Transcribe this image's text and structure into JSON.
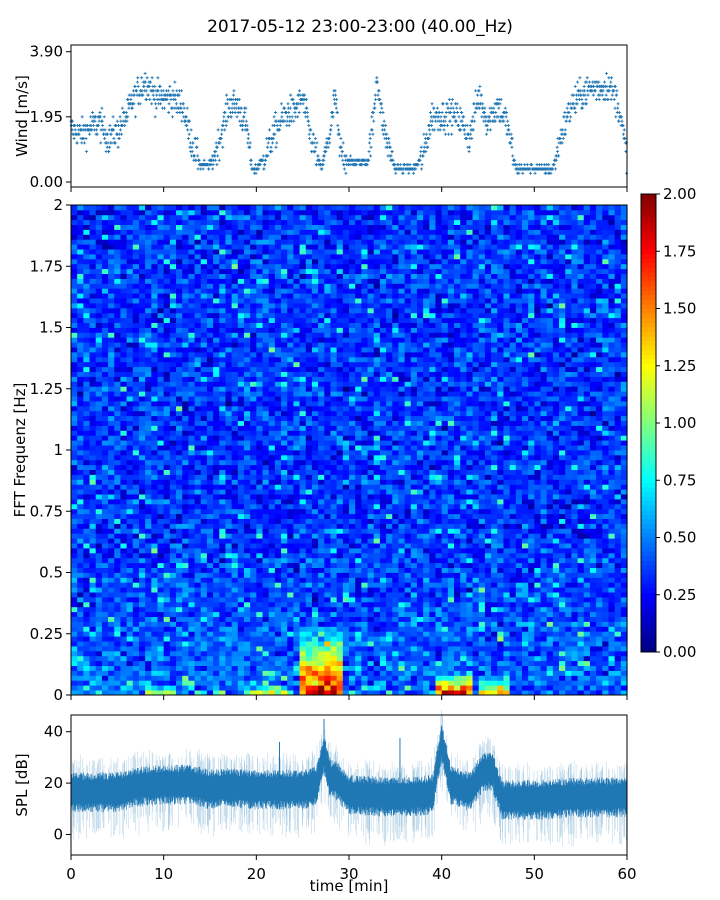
{
  "title": "2017-05-12 23:00-23:00 (40.00_Hz)",
  "chart_data": [
    {
      "type": "scatter",
      "name": "wind",
      "ylabel": "Wind [m/s]",
      "xlim": [
        0,
        60
      ],
      "ylim": [
        -0.15,
        4.1
      ],
      "yticks": [
        "0.00",
        "1.95",
        "3.90"
      ],
      "ytick_values": [
        0,
        1.95,
        3.9
      ],
      "marker": "+",
      "color": "#1f77b4",
      "x_minutes": [
        0,
        1,
        2,
        3,
        4,
        5,
        6,
        7,
        8,
        9,
        10,
        11,
        12,
        13,
        14,
        15,
        16,
        17,
        18,
        19,
        19.5,
        20,
        21,
        22,
        23,
        24,
        25,
        26,
        27,
        28,
        28.5,
        29,
        30,
        31,
        32,
        32.7,
        33,
        33.5,
        34,
        35,
        36,
        37,
        38,
        39,
        40,
        41,
        42,
        43,
        44,
        45,
        46,
        47,
        48,
        49,
        50,
        51,
        52,
        53,
        54,
        55,
        56,
        57,
        58,
        59,
        60
      ],
      "mean_wind": [
        1.6,
        1.4,
        1.6,
        1.8,
        1.3,
        1.5,
        2.0,
        2.6,
        3.0,
        2.6,
        2.5,
        2.5,
        2.3,
        1.2,
        0.5,
        0.5,
        1.2,
        2.3,
        2.3,
        1.6,
        0.4,
        0.4,
        0.8,
        1.5,
        2.0,
        2.1,
        2.5,
        1.2,
        0.4,
        1.5,
        2.6,
        1.0,
        0.6,
        0.6,
        0.6,
        2.0,
        3.3,
        2.0,
        1.3,
        0.4,
        0.4,
        0.4,
        0.8,
        2.0,
        2.0,
        2.0,
        1.9,
        1.3,
        2.6,
        1.8,
        2.3,
        1.8,
        0.4,
        0.4,
        0.4,
        0.4,
        0.4,
        1.5,
        2.3,
        2.6,
        2.8,
        2.8,
        2.9,
        2.4,
        0.8
      ]
    },
    {
      "type": "heatmap",
      "name": "spectrogram",
      "ylabel": "FFT Frequenz [Hz]",
      "xlim": [
        0,
        60
      ],
      "ylim": [
        0,
        2
      ],
      "yticks": [
        "0",
        "0.25",
        "0.5",
        "0.75",
        "1",
        "1.25",
        "1.5",
        "1.75",
        "2"
      ],
      "ytick_values": [
        0,
        0.25,
        0.5,
        0.75,
        1,
        1.25,
        1.5,
        1.75,
        2
      ],
      "colormap": "jet",
      "clim": [
        0,
        2
      ],
      "background_level": 0.35,
      "hotspots": [
        {
          "t_start": 25,
          "t_end": 29.5,
          "f_max": 0.3,
          "peak": 2.0
        },
        {
          "t_start": 39.5,
          "t_end": 43,
          "f_max": 0.1,
          "peak": 2.0
        },
        {
          "t_start": 44,
          "t_end": 47.5,
          "f_max": 0.08,
          "peak": 1.5
        },
        {
          "t_start": 8,
          "t_end": 11,
          "f_max": 0.04,
          "peak": 1.3
        },
        {
          "t_start": 19,
          "t_end": 24,
          "f_max": 0.04,
          "peak": 1.5
        }
      ]
    },
    {
      "type": "colorbar",
      "ticks": [
        "0.00",
        "0.25",
        "0.50",
        "0.75",
        "1.00",
        "1.25",
        "1.50",
        "1.75",
        "2.00"
      ],
      "range": [
        0,
        2
      ]
    },
    {
      "type": "line",
      "name": "spl",
      "ylabel": "SPL [dB]",
      "xlabel": "time [min]",
      "xlim": [
        0,
        60
      ],
      "ylim": [
        -8,
        46.5
      ],
      "yticks": [
        "0",
        "20",
        "40"
      ],
      "ytick_values": [
        0,
        20,
        40
      ],
      "xticks": [
        "0",
        "10",
        "20",
        "30",
        "40",
        "50",
        "60"
      ],
      "xtick_values": [
        0,
        10,
        20,
        30,
        40,
        50,
        60
      ],
      "color": "#1f77b4",
      "x_minutes": [
        0,
        5,
        7,
        10,
        13,
        15,
        17,
        20,
        22.5,
        25,
        26.5,
        27.3,
        28,
        28.5,
        30,
        35,
        39,
        40,
        41,
        43,
        44.5,
        45.5,
        46.5,
        50,
        55,
        60
      ],
      "mean_spl": [
        17,
        17,
        19,
        20,
        20,
        18,
        19,
        18,
        18,
        18,
        20,
        32,
        22,
        22,
        16,
        15,
        16,
        36,
        20,
        17,
        25,
        25,
        14,
        14,
        15,
        15
      ],
      "spread_db": 6
    }
  ]
}
